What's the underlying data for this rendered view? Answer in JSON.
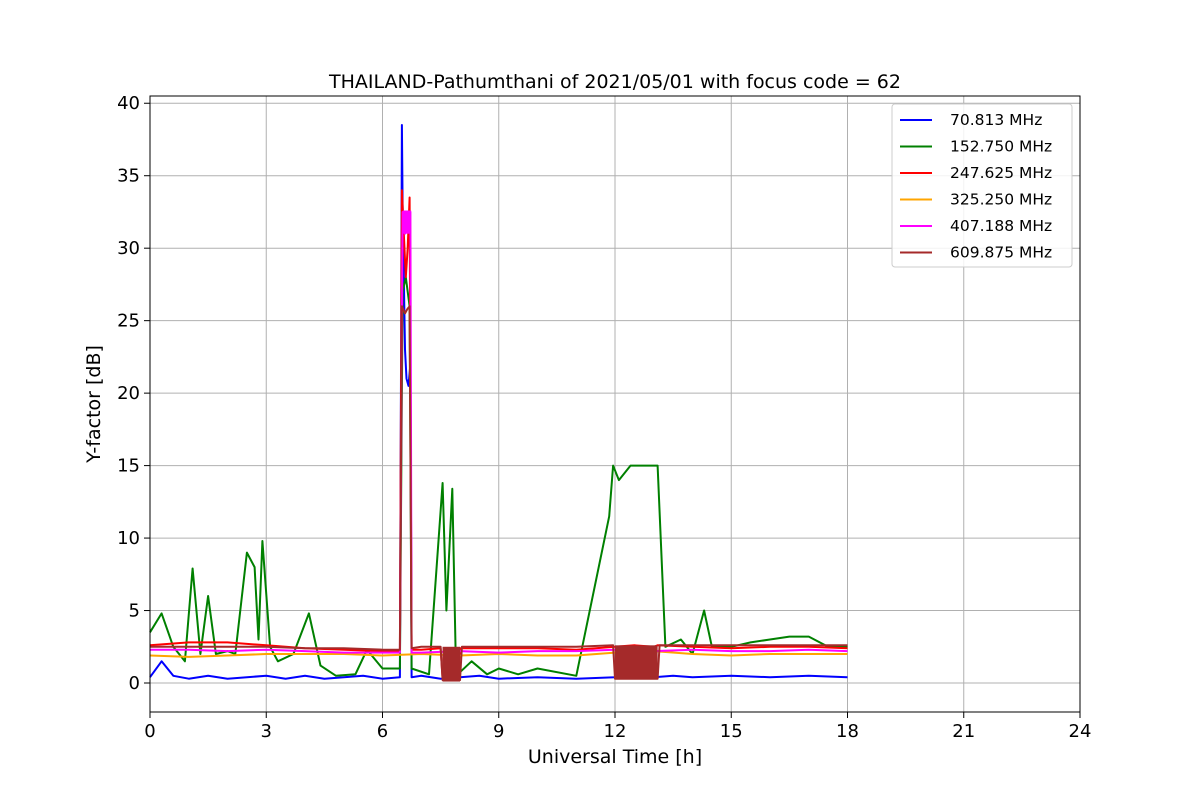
{
  "chart_data": {
    "type": "line",
    "title": "THAILAND-Pathumthani of 2021/05/01 with focus code = 62",
    "xlabel": "Universal Time [h]",
    "ylabel": "Y-factor [dB]",
    "xlim": [
      0,
      24
    ],
    "ylim": [
      -2,
      40.5
    ],
    "xticks": [
      "0",
      "3",
      "6",
      "9",
      "12",
      "15",
      "18",
      "21",
      "24"
    ],
    "yticks": [
      "0",
      "5",
      "10",
      "15",
      "20",
      "25",
      "30",
      "35",
      "40"
    ],
    "grid": true,
    "legend_position": "top-right",
    "series": [
      {
        "name": " 70.813 MHz",
        "color": "#0000ff",
        "x": [
          0,
          0.3,
          0.6,
          1,
          1.5,
          2,
          2.5,
          3,
          3.5,
          4,
          4.5,
          5,
          5.5,
          6,
          6.45,
          6.5,
          6.52,
          6.55,
          6.58,
          6.62,
          6.67,
          6.72,
          6.75,
          7,
          7.5,
          8,
          8.5,
          9,
          10,
          11,
          12,
          12.5,
          13,
          13.5,
          14,
          15,
          16,
          17,
          18
        ],
        "y": [
          0.4,
          1.5,
          0.5,
          0.3,
          0.5,
          0.3,
          0.4,
          0.5,
          0.3,
          0.5,
          0.3,
          0.4,
          0.5,
          0.3,
          0.4,
          38.5,
          33,
          28,
          23,
          21,
          20.5,
          22,
          0.4,
          0.5,
          0.3,
          0.4,
          0.5,
          0.3,
          0.4,
          0.3,
          0.4,
          0.5,
          0.4,
          0.5,
          0.4,
          0.5,
          0.4,
          0.5,
          0.4
        ]
      },
      {
        "name": "152.750 MHz",
        "color": "#008000",
        "x": [
          0,
          0.3,
          0.6,
          0.9,
          1.1,
          1.3,
          1.5,
          1.7,
          2,
          2.2,
          2.5,
          2.7,
          2.8,
          2.9,
          3.1,
          3.3,
          3.7,
          4.1,
          4.4,
          4.8,
          5.3,
          5.6,
          6,
          6.45,
          6.52,
          6.6,
          6.7,
          6.75,
          7.2,
          7.55,
          7.65,
          7.8,
          7.9,
          8.3,
          8.7,
          9,
          9.5,
          10,
          11,
          11.85,
          11.95,
          12.1,
          12.4,
          12.8,
          13.1,
          13.3,
          13.7,
          14,
          14.3,
          14.5,
          15,
          15.5,
          16,
          16.5,
          17,
          17.5,
          18
        ],
        "y": [
          3.5,
          4.8,
          2.5,
          1.5,
          7.9,
          2,
          6,
          2,
          2.2,
          2,
          9,
          8,
          3,
          9.8,
          2.5,
          1.5,
          2,
          4.8,
          1.2,
          0.5,
          0.6,
          2.3,
          1,
          1,
          27,
          28,
          26,
          1,
          0.6,
          13.8,
          5,
          13.4,
          0.5,
          1.5,
          0.6,
          1,
          0.6,
          1,
          0.5,
          11.5,
          15,
          14,
          15,
          15,
          15,
          2.5,
          3,
          2,
          5,
          2.5,
          2.5,
          2.8,
          3,
          3.2,
          3.2,
          2.5,
          2.5
        ]
      },
      {
        "name": "247.625 MHz",
        "color": "#ff0000",
        "x": [
          0,
          1,
          2,
          3,
          4,
          5,
          6,
          6.45,
          6.5,
          6.55,
          6.6,
          6.65,
          6.7,
          6.75,
          7,
          7.5,
          7.55,
          7.95,
          8,
          9,
          10,
          11,
          12,
          12.5,
          13,
          13.1,
          14,
          15,
          16,
          17,
          18
        ],
        "y": [
          2.6,
          2.8,
          2.8,
          2.6,
          2.4,
          2.3,
          2.2,
          2.2,
          34,
          31,
          28,
          30,
          33.5,
          2.3,
          2.3,
          2.4,
          0.3,
          0.3,
          2.4,
          2.4,
          2.4,
          2.3,
          2.5,
          2.6,
          2.5,
          2.6,
          2.5,
          2.4,
          2.5,
          2.5,
          2.4
        ]
      },
      {
        "name": "325.250 MHz",
        "color": "#ffa500",
        "x": [
          0,
          1,
          2,
          3,
          4,
          5,
          6,
          7,
          8,
          9,
          10,
          11,
          12,
          13,
          14,
          15,
          16,
          17,
          18
        ],
        "y": [
          1.9,
          1.8,
          1.9,
          2.0,
          2.0,
          2.0,
          1.9,
          2.0,
          1.9,
          2.0,
          1.9,
          1.9,
          2.1,
          2.2,
          2.0,
          1.9,
          2.0,
          2.0,
          2.0
        ]
      },
      {
        "name": "407.188 MHz",
        "color": "#ff00ff",
        "x": [
          0,
          1,
          2,
          3,
          4,
          5,
          6,
          6.45,
          6.52,
          6.58,
          6.62,
          6.68,
          6.72,
          6.75,
          7,
          8,
          9,
          10,
          11,
          12,
          13,
          14,
          15,
          16,
          17,
          18
        ],
        "y": [
          2.3,
          2.3,
          2.2,
          2.3,
          2.2,
          2.1,
          2.1,
          2.1,
          32.5,
          31,
          32,
          31.5,
          32.5,
          2.1,
          2.1,
          2.2,
          2.1,
          2.2,
          2.2,
          2.3,
          2.2,
          2.3,
          2.2,
          2.2,
          2.3,
          2.2
        ]
      },
      {
        "name": "609.875 MHz",
        "color": "#a52a2a",
        "x": [
          0,
          1,
          2,
          3,
          4,
          5,
          6,
          6.45,
          6.5,
          6.58,
          6.64,
          6.7,
          6.75,
          7,
          7.5,
          7.55,
          8,
          8.05,
          9,
          10,
          11,
          11.95,
          12,
          13.1,
          13.15,
          14,
          15,
          16,
          17,
          18
        ],
        "y": [
          2.5,
          2.5,
          2.5,
          2.5,
          2.4,
          2.4,
          2.3,
          2.3,
          26,
          25.5,
          25.8,
          26,
          2.4,
          2.5,
          2.5,
          0.2,
          0.2,
          2.5,
          2.5,
          2.5,
          2.5,
          2.6,
          0.3,
          0.3,
          2.6,
          2.6,
          2.6,
          2.6,
          2.6,
          2.6
        ]
      }
    ],
    "blocks": [
      {
        "series": "609.875 MHz",
        "x0": 7.55,
        "x1": 8.0,
        "y0": 0.1,
        "y1": 2.5
      },
      {
        "series": "609.875 MHz",
        "x0": 12.0,
        "x1": 13.1,
        "y0": 0.3,
        "y1": 2.6
      },
      {
        "series": "407.188 MHz",
        "x0": 6.52,
        "x1": 6.74,
        "y0": 31,
        "y1": 32.6
      }
    ]
  }
}
